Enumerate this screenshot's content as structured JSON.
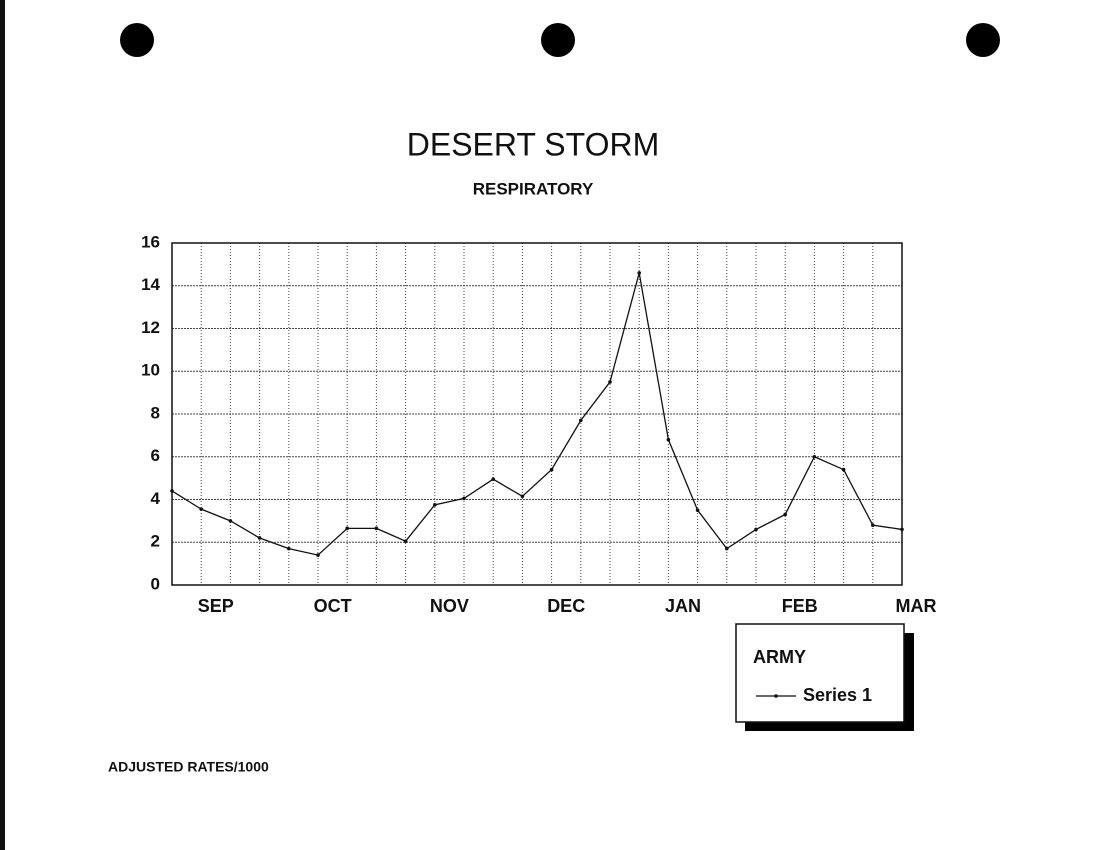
{
  "chart_data": {
    "type": "line",
    "title": "DESERT STORM",
    "subtitle": "RESPIRATORY",
    "footnote": "ADJUSTED RATES/1000",
    "legend_title": "ARMY",
    "legend": "bottom-right",
    "grid": true,
    "categories": [
      null,
      "SEP",
      null,
      null,
      null,
      "OCT",
      null,
      null,
      null,
      "NOV",
      null,
      null,
      null,
      "DEC",
      null,
      null,
      null,
      "JAN",
      null,
      null,
      null,
      "FEB",
      null,
      null,
      null,
      "MAR"
    ],
    "series": [
      {
        "name": "Series 1",
        "color": "#111111",
        "values": [
          4.4,
          3.55,
          3.0,
          2.2,
          1.7,
          1.4,
          2.65,
          2.65,
          2.05,
          3.75,
          4.05,
          4.95,
          4.15,
          5.4,
          7.7,
          9.5,
          14.6,
          6.8,
          3.5,
          1.7,
          2.6,
          3.3,
          6.0,
          5.4,
          2.8,
          2.6
        ]
      }
    ],
    "ylim": [
      0,
      16
    ],
    "yticks": [
      0,
      2,
      4,
      6,
      8,
      10,
      12,
      14,
      16
    ]
  }
}
